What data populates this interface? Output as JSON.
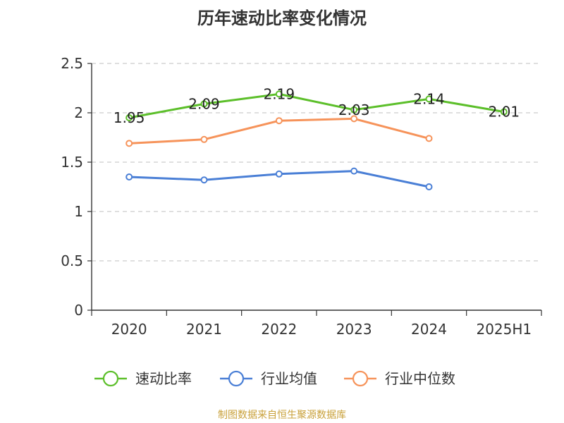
{
  "title": "历年速动比率变化情况",
  "source": "制图数据来自恒生聚源数据库",
  "chart_data": {
    "type": "line",
    "title": "历年速动比率变化情况",
    "categories": [
      "2020",
      "2021",
      "2022",
      "2023",
      "2024",
      "2025H1"
    ],
    "ylim": [
      0,
      2.5
    ],
    "yticks": [
      "0",
      "0.5",
      "1",
      "1.5",
      "2",
      "2.5"
    ],
    "grid": true,
    "legend_position": "bottom",
    "series": [
      {
        "name": "速动比率",
        "color": "#5cbf2a",
        "values": [
          1.95,
          2.09,
          2.19,
          2.03,
          2.14,
          2.01
        ],
        "labels": [
          "1.95",
          "2.09",
          "2.19",
          "2.03",
          "2.14",
          "2.01"
        ]
      },
      {
        "name": "行业均值",
        "color": "#4a7fd6",
        "values": [
          1.35,
          1.32,
          1.38,
          1.41,
          1.25,
          null
        ]
      },
      {
        "name": "行业中位数",
        "color": "#f6935a",
        "values": [
          1.69,
          1.73,
          1.92,
          1.94,
          1.74,
          null
        ]
      }
    ]
  }
}
